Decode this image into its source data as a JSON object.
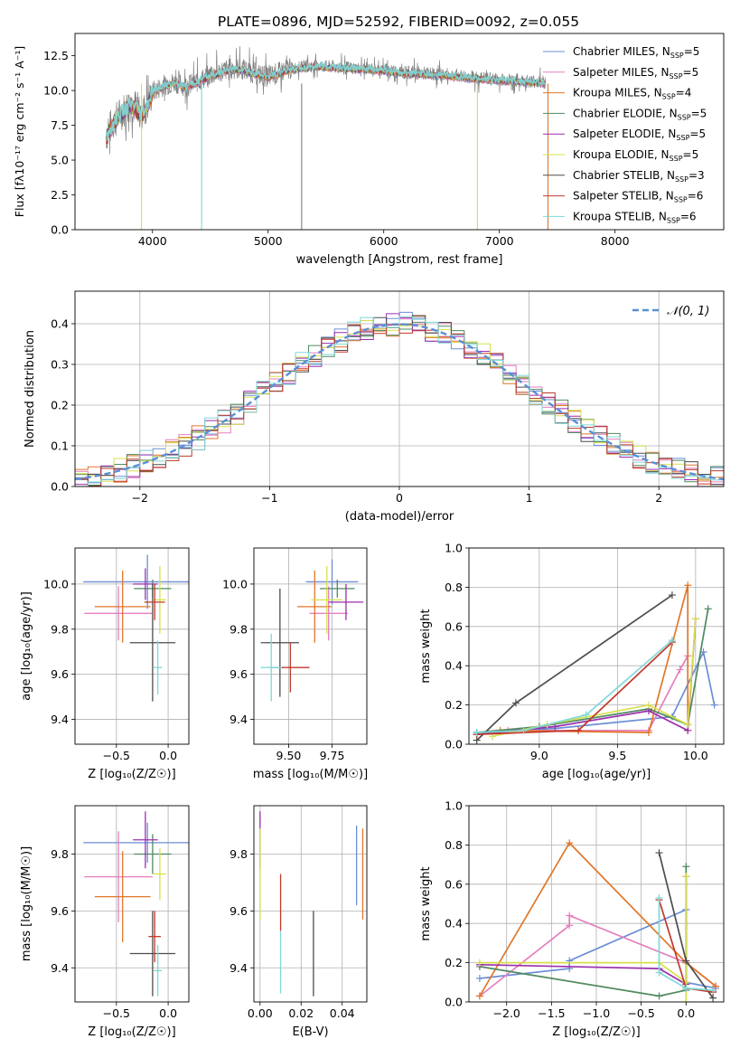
{
  "figure_title": "PLATE=0896, MJD=52592, FIBERID=0092, z=0.055",
  "colors": {
    "Chabrier MILES": "#6b8ed6",
    "Salpeter MILES": "#e57fbf",
    "Kroupa MILES": "#e0772a",
    "Chabrier ELODIE": "#4f8a5f",
    "Salpeter ELODIE": "#9b2fae",
    "Kroupa ELODIE": "#d6e04a",
    "Chabrier STELIB": "#4d4d4d",
    "Salpeter STELIB": "#c0392b",
    "Kroupa STELIB": "#7fd8d8"
  },
  "chart_data": [
    {
      "id": "spectrum",
      "type": "line",
      "title": "PLATE=0896, MJD=52592, FIBERID=0092, z=0.055",
      "xlabel": "wavelength [Angstrom, rest frame]",
      "ylabel": "Flux [f$_λ$10$^{-17}$ erg cm$^{-2}$ s$^{-1}$ A$^{-1}$]",
      "xlim": [
        3330,
        8940
      ],
      "ylim": [
        0,
        14.1
      ],
      "xticks": [
        4000,
        5000,
        6000,
        7000,
        8000
      ],
      "yticks": [
        0.0,
        2.5,
        5.0,
        7.5,
        10.0,
        12.5
      ],
      "legend_position": "upper-right",
      "legend": [
        {
          "model": "Chabrier MILES",
          "label": "Chabrier MILES, N",
          "sub": "SSP",
          "suffix": "=5"
        },
        {
          "model": "Salpeter MILES",
          "label": "Salpeter MILES, N",
          "sub": "SSP",
          "suffix": "=5"
        },
        {
          "model": "Kroupa MILES",
          "label": "Kroupa MILES, N",
          "sub": "SSP",
          "suffix": "=4"
        },
        {
          "model": "Chabrier ELODIE",
          "label": "Chabrier ELODIE, N",
          "sub": "SSP",
          "suffix": "=5"
        },
        {
          "model": "Salpeter ELODIE",
          "label": "Salpeter ELODIE, N",
          "sub": "SSP",
          "suffix": "=5"
        },
        {
          "model": "Kroupa ELODIE",
          "label": "Kroupa ELODIE, N",
          "sub": "SSP",
          "suffix": "=5"
        },
        {
          "model": "Chabrier STELIB",
          "label": "Chabrier STELIB, N",
          "sub": "SSP",
          "suffix": "=3"
        },
        {
          "model": "Salpeter STELIB",
          "label": "Salpeter STELIB, N",
          "sub": "SSP",
          "suffix": "=6"
        },
        {
          "model": "Kroupa STELIB",
          "label": "Kroupa STELIB, N",
          "sub": "SSP",
          "suffix": "=6"
        }
      ],
      "data_series": {
        "name": "data",
        "color": "#808080",
        "x": [
          3600,
          3650,
          3700,
          3750,
          3800,
          3850,
          3900,
          3950,
          4000,
          4100,
          4200,
          4300,
          4400,
          4500,
          4600,
          4700,
          4800,
          4900,
          5000,
          5200,
          5400,
          5600,
          5800,
          6000,
          6200,
          6400,
          6600,
          6800,
          7000,
          7200,
          7400
        ],
        "y": [
          6.8,
          7.6,
          8.1,
          8.6,
          9.0,
          8.9,
          8.4,
          8.8,
          9.9,
          10.4,
          10.6,
          10.3,
          10.7,
          11.1,
          11.4,
          11.6,
          11.5,
          11.2,
          11.0,
          11.6,
          11.8,
          11.7,
          11.6,
          11.5,
          11.3,
          11.2,
          11.1,
          10.9,
          10.8,
          10.7,
          10.6
        ]
      },
      "model_series": {
        "name": "model",
        "color": "#7fd8d8",
        "x": [
          3600,
          3650,
          3700,
          3750,
          3800,
          3850,
          3900,
          3950,
          4000,
          4100,
          4200,
          4300,
          4400,
          4500,
          4600,
          4700,
          4800,
          4900,
          5000,
          5200,
          5400,
          5600,
          5800,
          6000,
          6200,
          6400,
          6600,
          6800,
          7000,
          7200,
          7400
        ],
        "y": [
          6.5,
          7.4,
          8.0,
          8.5,
          8.9,
          8.7,
          8.1,
          8.7,
          9.8,
          10.3,
          10.5,
          10.2,
          10.6,
          11.0,
          11.3,
          11.5,
          11.4,
          11.1,
          10.9,
          11.5,
          11.7,
          11.6,
          11.5,
          11.4,
          11.2,
          11.1,
          11.0,
          10.8,
          10.7,
          10.6,
          10.5
        ]
      },
      "dropouts": [
        {
          "x": 3905,
          "color": "#d6e04a"
        },
        {
          "x": 4425,
          "color": "#7fd8d8"
        },
        {
          "x": 5290,
          "color": "#808080"
        },
        {
          "x": 6810,
          "color": "#d6e04a"
        },
        {
          "x": 7420,
          "color": "#e0772a"
        }
      ]
    },
    {
      "id": "residuals",
      "type": "line",
      "xlabel": "(data-model)/error",
      "ylabel": "Normed distribution",
      "xlim": [
        -2.5,
        2.5
      ],
      "ylim": [
        0,
        0.48
      ],
      "xticks": [
        -2,
        -1,
        0,
        1,
        2
      ],
      "xtick_labels": [
        "−2",
        "−1",
        "0",
        "1",
        "2"
      ],
      "yticks": [
        0.0,
        0.1,
        0.2,
        0.3,
        0.4
      ],
      "grid": true,
      "legend": [
        {
          "label": "𝒩(0, 1)",
          "color": "#5b8fd6",
          "style": "dashed"
        }
      ],
      "legend_position": "upper-right",
      "series_models": [
        "Chabrier MILES",
        "Salpeter MILES",
        "Kroupa MILES",
        "Chabrier ELODIE",
        "Salpeter ELODIE",
        "Kroupa ELODIE",
        "Chabrier STELIB",
        "Salpeter STELIB",
        "Kroupa STELIB"
      ],
      "bin_width": 0.1,
      "bin_start": -2.5
    },
    {
      "id": "age_vs_Z",
      "type": "scatter",
      "xlabel": "Z [log₁₀(Z/Z☉)]",
      "ylabel": "age  [log₁₀(age/yr)]",
      "xlim": [
        -0.9,
        0.2
      ],
      "ylim": [
        9.29,
        10.16
      ],
      "xticks": [
        -0.5,
        0.0
      ],
      "xtick_labels": [
        "−0.5",
        "0.0"
      ],
      "yticks": [
        9.4,
        9.6,
        9.8,
        10.0
      ],
      "grid": true,
      "points": [
        {
          "model": "Chabrier MILES",
          "x": -0.2,
          "xerr": 0.62,
          "y": 10.01,
          "yerr": 0.12
        },
        {
          "model": "Salpeter MILES",
          "x": -0.48,
          "xerr": 0.33,
          "y": 9.87,
          "yerr": 0.12
        },
        {
          "model": "Kroupa MILES",
          "x": -0.44,
          "xerr": 0.27,
          "y": 9.9,
          "yerr": 0.16
        },
        {
          "model": "Chabrier ELODIE",
          "x": -0.15,
          "xerr": 0.18,
          "y": 9.98,
          "yerr": 0.04
        },
        {
          "model": "Salpeter ELODIE",
          "x": -0.22,
          "xerr": 0.12,
          "y": 10.0,
          "yerr": 0.07
        },
        {
          "model": "Kroupa ELODIE",
          "x": -0.08,
          "xerr": 0.06,
          "y": 9.93,
          "yerr": 0.15
        },
        {
          "model": "Chabrier STELIB",
          "x": -0.15,
          "xerr": 0.22,
          "y": 9.74,
          "yerr": 0.26
        },
        {
          "model": "Salpeter STELIB",
          "x": -0.13,
          "xerr": 0.1,
          "y": 9.92,
          "yerr": 0.08
        },
        {
          "model": "Kroupa STELIB",
          "x": -0.1,
          "xerr": 0.04,
          "y": 9.63,
          "yerr": 0.12
        }
      ]
    },
    {
      "id": "age_vs_mass",
      "type": "scatter",
      "xlabel": "mass [log₁₀(M/M☉)]",
      "xlim": [
        9.3,
        9.95
      ],
      "ylim": [
        9.29,
        10.16
      ],
      "xticks": [
        9.5,
        9.75
      ],
      "xtick_labels": [
        "9.50",
        "9.75"
      ],
      "yticks": [
        9.4,
        9.6,
        9.8,
        10.0
      ],
      "grid": true,
      "points": [
        {
          "model": "Chabrier MILES",
          "x": 9.75,
          "xerr": 0.15,
          "y": 10.01,
          "yerr": 0.1
        },
        {
          "model": "Salpeter MILES",
          "x": 9.73,
          "xerr": 0.11,
          "y": 9.87,
          "yerr": 0.12
        },
        {
          "model": "Kroupa MILES",
          "x": 9.65,
          "xerr": 0.1,
          "y": 9.9,
          "yerr": 0.16
        },
        {
          "model": "Chabrier ELODIE",
          "x": 9.78,
          "xerr": 0.1,
          "y": 9.98,
          "yerr": 0.04
        },
        {
          "model": "Salpeter ELODIE",
          "x": 9.83,
          "xerr": 0.1,
          "y": 9.92,
          "yerr": 0.08
        },
        {
          "model": "Kroupa ELODIE",
          "x": 9.72,
          "xerr": 0.09,
          "y": 9.93,
          "yerr": 0.15
        },
        {
          "model": "Chabrier STELIB",
          "x": 9.45,
          "xerr": 0.11,
          "y": 9.74,
          "yerr": 0.24
        },
        {
          "model": "Salpeter STELIB",
          "x": 9.51,
          "xerr": 0.11,
          "y": 9.63,
          "yerr": 0.11
        },
        {
          "model": "Kroupa STELIB",
          "x": 9.4,
          "xerr": 0.06,
          "y": 9.63,
          "yerr": 0.15
        }
      ]
    },
    {
      "id": "mw_vs_age",
      "type": "line",
      "xlabel": "age  [log₁₀(age/yr)]",
      "ylabel": "mass weight",
      "xlim": [
        8.55,
        10.18
      ],
      "ylim": [
        0,
        1
      ],
      "xticks": [
        9.0,
        9.5,
        10.0
      ],
      "xtick_labels": [
        "9.0",
        "9.5",
        "10.0"
      ],
      "yticks": [
        0.0,
        0.2,
        0.4,
        0.6,
        0.8,
        1.0
      ],
      "grid": true,
      "series": [
        {
          "model": "Chabrier MILES",
          "x": [
            8.6,
            9.1,
            9.85,
            10.05,
            10.12
          ],
          "y": [
            0.06,
            0.08,
            0.14,
            0.47,
            0.2
          ]
        },
        {
          "model": "Salpeter MILES",
          "x": [
            8.8,
            9.7,
            9.9,
            9.95
          ],
          "y": [
            0.07,
            0.07,
            0.38,
            0.45
          ]
        },
        {
          "model": "Kroupa MILES",
          "x": [
            8.75,
            9.7,
            9.95,
            9.95
          ],
          "y": [
            0.07,
            0.06,
            0.81,
            0.07
          ]
        },
        {
          "model": "Chabrier ELODIE",
          "x": [
            8.6,
            9.0,
            9.7,
            9.95,
            10.08
          ],
          "y": [
            0.06,
            0.09,
            0.18,
            0.1,
            0.69
          ]
        },
        {
          "model": "Salpeter ELODIE",
          "x": [
            8.6,
            9.1,
            9.7,
            9.95,
            10.0
          ],
          "y": [
            0.05,
            0.09,
            0.17,
            0.07,
            0.64
          ]
        },
        {
          "model": "Kroupa ELODIE",
          "x": [
            8.7,
            9.05,
            9.7,
            9.95,
            10.0
          ],
          "y": [
            0.04,
            0.1,
            0.2,
            0.1,
            0.64
          ]
        },
        {
          "model": "Chabrier STELIB",
          "x": [
            8.6,
            8.85,
            9.85
          ],
          "y": [
            0.02,
            0.21,
            0.76
          ]
        },
        {
          "model": "Salpeter STELIB",
          "x": [
            8.6,
            9.25,
            9.85
          ],
          "y": [
            0.05,
            0.07,
            0.52
          ]
        },
        {
          "model": "Kroupa STELIB",
          "x": [
            8.6,
            8.9,
            9.3,
            9.85
          ],
          "y": [
            0.06,
            0.07,
            0.15,
            0.53
          ]
        }
      ]
    },
    {
      "id": "mass_vs_Z",
      "type": "scatter",
      "xlabel": "Z [log₁₀(Z/Z☉)]",
      "ylabel": "mass [log₁₀(M/M☉)]",
      "xlim": [
        -0.9,
        0.2
      ],
      "ylim": [
        9.28,
        9.97
      ],
      "xticks": [
        -0.5,
        0.0
      ],
      "xtick_labels": [
        "−0.5",
        "0.0"
      ],
      "yticks": [
        9.4,
        9.6,
        9.8
      ],
      "grid": true,
      "points": [
        {
          "model": "Chabrier MILES",
          "x": -0.2,
          "xerr": 0.62,
          "y": 9.84,
          "yerr": 0.07
        },
        {
          "model": "Salpeter MILES",
          "x": -0.48,
          "xerr": 0.33,
          "y": 9.72,
          "yerr": 0.16
        },
        {
          "model": "Kroupa MILES",
          "x": -0.44,
          "xerr": 0.27,
          "y": 9.65,
          "yerr": 0.16
        },
        {
          "model": "Chabrier ELODIE",
          "x": -0.15,
          "xerr": 0.18,
          "y": 9.8,
          "yerr": 0.07
        },
        {
          "model": "Salpeter ELODIE",
          "x": -0.22,
          "xerr": 0.12,
          "y": 9.85,
          "yerr": 0.1
        },
        {
          "model": "Kroupa ELODIE",
          "x": -0.08,
          "xerr": 0.06,
          "y": 9.73,
          "yerr": 0.09
        },
        {
          "model": "Chabrier STELIB",
          "x": -0.15,
          "xerr": 0.22,
          "y": 9.45,
          "yerr": 0.15
        },
        {
          "model": "Salpeter STELIB",
          "x": -0.13,
          "xerr": 0.06,
          "y": 9.51,
          "yerr": 0.09
        },
        {
          "model": "Kroupa STELIB",
          "x": -0.1,
          "xerr": 0.04,
          "y": 9.39,
          "yerr": 0.09
        }
      ]
    },
    {
      "id": "ebv",
      "type": "scatter",
      "xlabel": "E(B-V)",
      "xlim": [
        -0.003,
        0.052
      ],
      "ylim": [
        9.28,
        9.97
      ],
      "xticks": [
        0.0,
        0.02,
        0.04
      ],
      "xtick_labels": [
        "0.00",
        "0.02",
        "0.04"
      ],
      "yticks": [
        9.4,
        9.6,
        9.8
      ],
      "grid": true,
      "points": [
        {
          "model": "Salpeter ELODIE",
          "x": 0.0,
          "y": 9.85,
          "yerr": 0.1
        },
        {
          "model": "Kroupa ELODIE",
          "x": 0.0,
          "y": 9.73,
          "yerr": 0.16
        },
        {
          "model": "Salpeter STELIB",
          "x": 0.01,
          "y": 9.63,
          "yerr": 0.1
        },
        {
          "model": "Kroupa STELIB",
          "x": 0.01,
          "y": 9.42,
          "yerr": 0.11
        },
        {
          "model": "Chabrier STELIB",
          "x": 0.026,
          "y": 9.45,
          "yerr": 0.15
        },
        {
          "model": "Chabrier MILES",
          "x": 0.047,
          "y": 9.76,
          "yerr": 0.14
        },
        {
          "model": "Kroupa MILES",
          "x": 0.05,
          "y": 9.73,
          "yerr": 0.16
        }
      ]
    },
    {
      "id": "mw_vs_Z",
      "type": "line",
      "xlabel": "Z [log₁₀(Z/Z☉)]",
      "ylabel": "mass weight",
      "xlim": [
        -2.42,
        0.42
      ],
      "ylim": [
        0,
        1
      ],
      "xticks": [
        -2.0,
        -1.5,
        -1.0,
        -0.5,
        0.0
      ],
      "xtick_labels": [
        "−2.0",
        "−1.5",
        "−1.0",
        "−0.5",
        "0.0"
      ],
      "yticks": [
        0.0,
        0.2,
        0.4,
        0.6,
        0.8,
        1.0
      ],
      "grid": true,
      "series": [
        {
          "model": "Chabrier MILES",
          "x": [
            -2.3,
            -1.3,
            -1.3,
            0.0,
            0.0,
            0.33
          ],
          "y": [
            0.12,
            0.17,
            0.21,
            0.47,
            0.1,
            0.07
          ]
        },
        {
          "model": "Salpeter MILES",
          "x": [
            -2.3,
            -1.3,
            -1.3,
            0.0,
            0.33
          ],
          "y": [
            0.03,
            0.39,
            0.44,
            0.2,
            0.08
          ]
        },
        {
          "model": "Kroupa MILES",
          "x": [
            -2.3,
            -1.3,
            0.0,
            0.33
          ],
          "y": [
            0.03,
            0.81,
            0.2,
            0.08
          ]
        },
        {
          "model": "Chabrier ELODIE",
          "x": [
            -2.3,
            -0.3,
            0.0,
            0.0
          ],
          "y": [
            0.18,
            0.03,
            0.06,
            0.69
          ]
        },
        {
          "model": "Salpeter ELODIE",
          "x": [
            -2.3,
            -0.3,
            0.0,
            0.0
          ],
          "y": [
            0.19,
            0.17,
            0.09,
            0.64
          ]
        },
        {
          "model": "Kroupa ELODIE",
          "x": [
            -2.3,
            -0.3,
            0.0,
            0.0,
            0.0
          ],
          "y": [
            0.2,
            0.2,
            0.1,
            0.64,
            0.0
          ]
        },
        {
          "model": "Chabrier STELIB",
          "x": [
            -0.3,
            0.0,
            0.3
          ],
          "y": [
            0.76,
            0.21,
            0.02
          ]
        },
        {
          "model": "Salpeter STELIB",
          "x": [
            -0.3,
            0.0,
            0.3
          ],
          "y": [
            0.52,
            0.07,
            0.05
          ]
        },
        {
          "model": "Kroupa STELIB",
          "x": [
            -0.3,
            -0.3,
            0.0,
            0.3
          ],
          "y": [
            0.53,
            0.15,
            0.07,
            0.06
          ]
        }
      ]
    }
  ]
}
